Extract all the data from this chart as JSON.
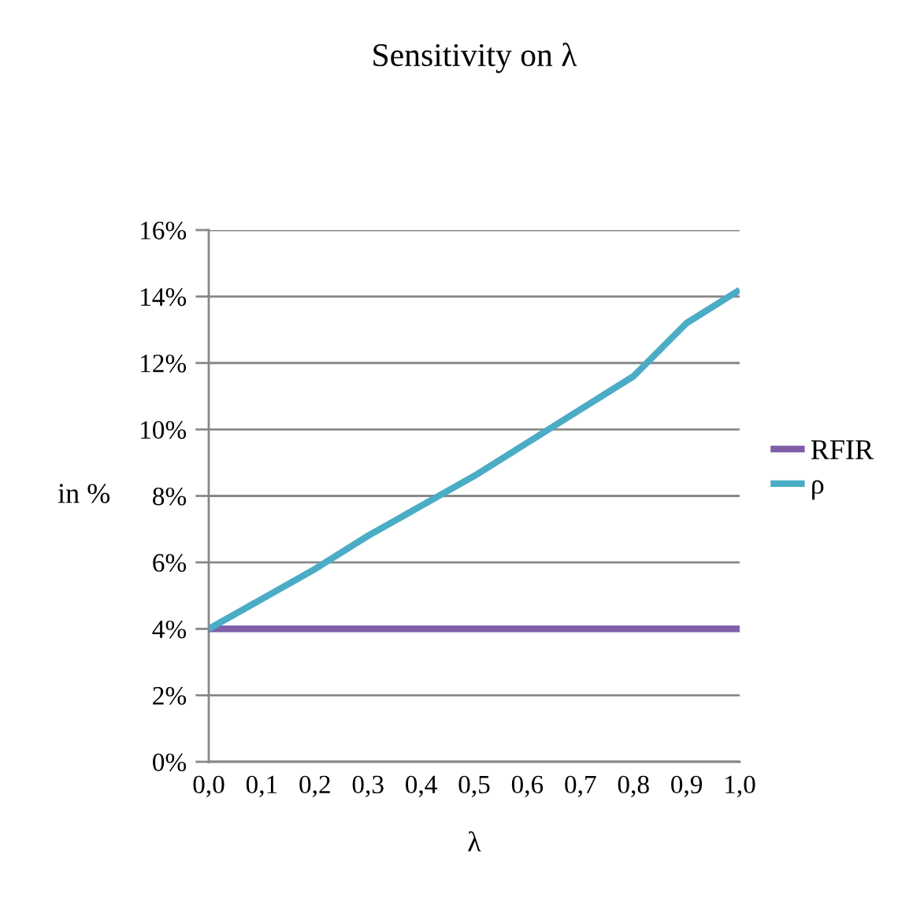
{
  "chart_data": {
    "type": "line",
    "title": "Sensitivity on λ",
    "xlabel": "λ",
    "ylabel": "in %",
    "categories": [
      "0,0",
      "0,1",
      "0,2",
      "0,3",
      "0,4",
      "0,5",
      "0,6",
      "0,7",
      "0,8",
      "0,9",
      "1,0"
    ],
    "series": [
      {
        "name": "RFIR",
        "color": "#7f5fa8",
        "values": [
          4,
          4,
          4,
          4,
          4,
          4,
          4,
          4,
          4,
          4,
          4
        ]
      },
      {
        "name": "ρ",
        "color": "#4bacc6",
        "values": [
          4.0,
          4.9,
          5.8,
          6.8,
          7.7,
          8.6,
          9.6,
          10.6,
          11.6,
          13.2,
          14.2
        ]
      }
    ],
    "ylim": [
      0,
      16
    ],
    "yticks": [
      {
        "value": 0,
        "label": "0%"
      },
      {
        "value": 2,
        "label": "2%"
      },
      {
        "value": 4,
        "label": "4%"
      },
      {
        "value": 6,
        "label": "6%"
      },
      {
        "value": 8,
        "label": "8%"
      },
      {
        "value": 10,
        "label": "10%"
      },
      {
        "value": 12,
        "label": "12%"
      },
      {
        "value": 14,
        "label": "14%"
      },
      {
        "value": 16,
        "label": "16%"
      }
    ],
    "grid": "y",
    "legend": "right",
    "marker": "none",
    "line_style": "solid"
  }
}
